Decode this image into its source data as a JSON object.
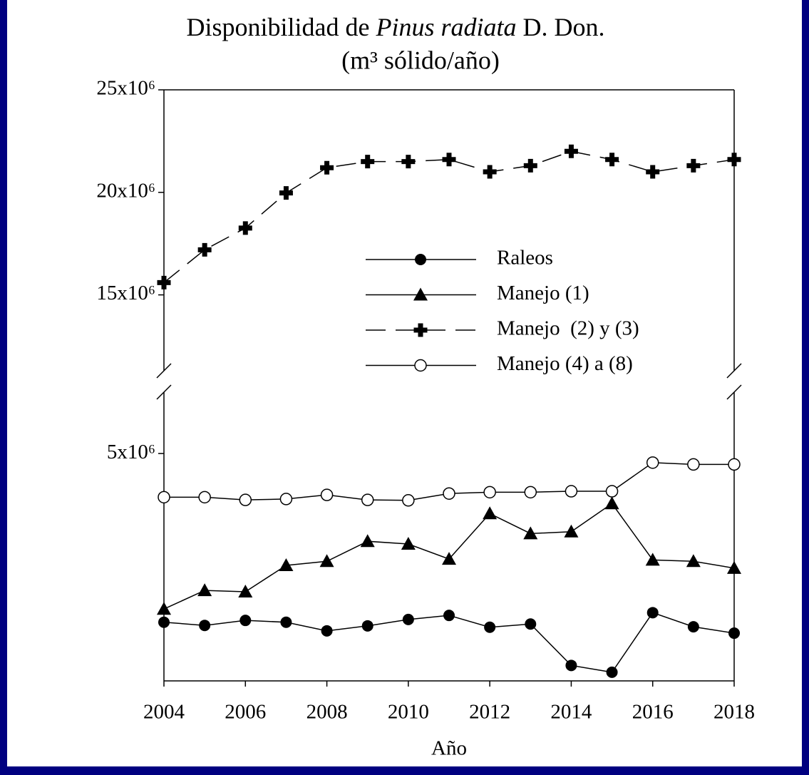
{
  "chart_data": {
    "type": "line",
    "title": [
      "Disponibilidad de ",
      "Pinus radiata",
      " D. Don."
    ],
    "subtitle": "(m³ sólido/año)",
    "x_label": "Año",
    "x": [
      2004,
      2005,
      2006,
      2007,
      2008,
      2009,
      2010,
      2011,
      2012,
      2013,
      2014,
      2015,
      2016,
      2017,
      2018
    ],
    "xlim": [
      2004,
      2018
    ],
    "xticks": [
      2004,
      2006,
      2008,
      2010,
      2012,
      2014,
      2016,
      2018
    ],
    "ylim": [
      0,
      25000000
    ],
    "ybreak": [
      6350000,
      11300000
    ],
    "yticks": [
      {
        "value": 5000000,
        "label": "5x10⁶"
      },
      {
        "value": 15000000,
        "label": "15x10⁶"
      },
      {
        "value": 20000000,
        "label": "20x10⁶"
      },
      {
        "value": 25000000,
        "label": "25x10⁶"
      }
    ],
    "series": [
      {
        "name": "Raleos",
        "color": "#000000",
        "marker": "circle",
        "dash": false,
        "values": [
          1290000,
          1220000,
          1330000,
          1290000,
          1100000,
          1210000,
          1350000,
          1440000,
          1180000,
          1250000,
          340000,
          190000,
          1500000,
          1190000,
          1050000
        ]
      },
      {
        "name": "Manejo (1)",
        "color": "#000000",
        "marker": "triangle",
        "dash": false,
        "values": [
          1580000,
          1990000,
          1960000,
          2540000,
          2630000,
          3070000,
          3010000,
          2680000,
          3680000,
          3240000,
          3280000,
          3900000,
          2660000,
          2630000,
          2480000
        ]
      },
      {
        "name": "Manejo  (2) y (3)",
        "color": "#000000",
        "marker": "cross",
        "dash": true,
        "values": [
          15600000,
          17200000,
          18260000,
          19970000,
          21200000,
          21500000,
          21500000,
          21600000,
          21000000,
          21300000,
          22000000,
          21600000,
          21000000,
          21300000,
          21600000
        ]
      },
      {
        "name": "Manejo (4) a (8)",
        "color": "#000000",
        "marker": "open-circle",
        "dash": false,
        "values": [
          4040000,
          4040000,
          3980000,
          4000000,
          4090000,
          3980000,
          3970000,
          4120000,
          4150000,
          4150000,
          4170000,
          4170000,
          4800000,
          4760000,
          4760000
        ]
      }
    ]
  }
}
